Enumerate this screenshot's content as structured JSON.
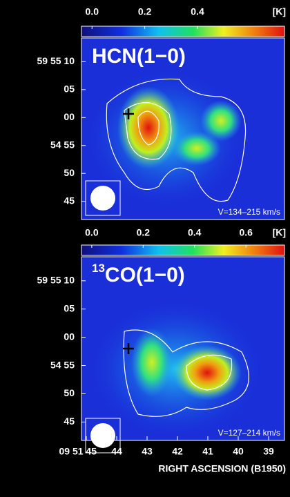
{
  "chart_data": [
    {
      "type": "map",
      "title": "HCN(1−0)",
      "annotation": "V=134–215 km/s",
      "colorbar_unit": "[K]",
      "clim": [
        -0.04,
        0.73
      ],
      "colorbar_ticks": [
        {
          "value": 0,
          "label": "0.0"
        },
        {
          "value": 0.2,
          "label": "0.2"
        },
        {
          "value": 0.4,
          "label": "0.4"
        }
      ],
      "y_labels": [
        "59 55 10",
        "05",
        "00",
        "54 55",
        "50",
        "45"
      ]
    },
    {
      "type": "map",
      "title_sup": "13",
      "title": "CO(1−0)",
      "annotation": "V=127–214 km/s",
      "colorbar_unit": "[K]",
      "clim": [
        -0.04,
        0.75
      ],
      "colorbar_ticks": [
        {
          "value": 0,
          "label": "0.0"
        },
        {
          "value": 0.2,
          "label": "0.2"
        },
        {
          "value": 0.4,
          "label": "0.4"
        },
        {
          "value": 0.6,
          "label": "0.6"
        }
      ],
      "y_labels": [
        "59 55 10",
        "05",
        "00",
        "54 55",
        "50",
        "45"
      ],
      "x_labels": [
        "09 51 45",
        "44",
        "43",
        "42",
        "41",
        "40",
        "39"
      ],
      "xlabel": "RIGHT ASCENSION (B1950)"
    }
  ]
}
